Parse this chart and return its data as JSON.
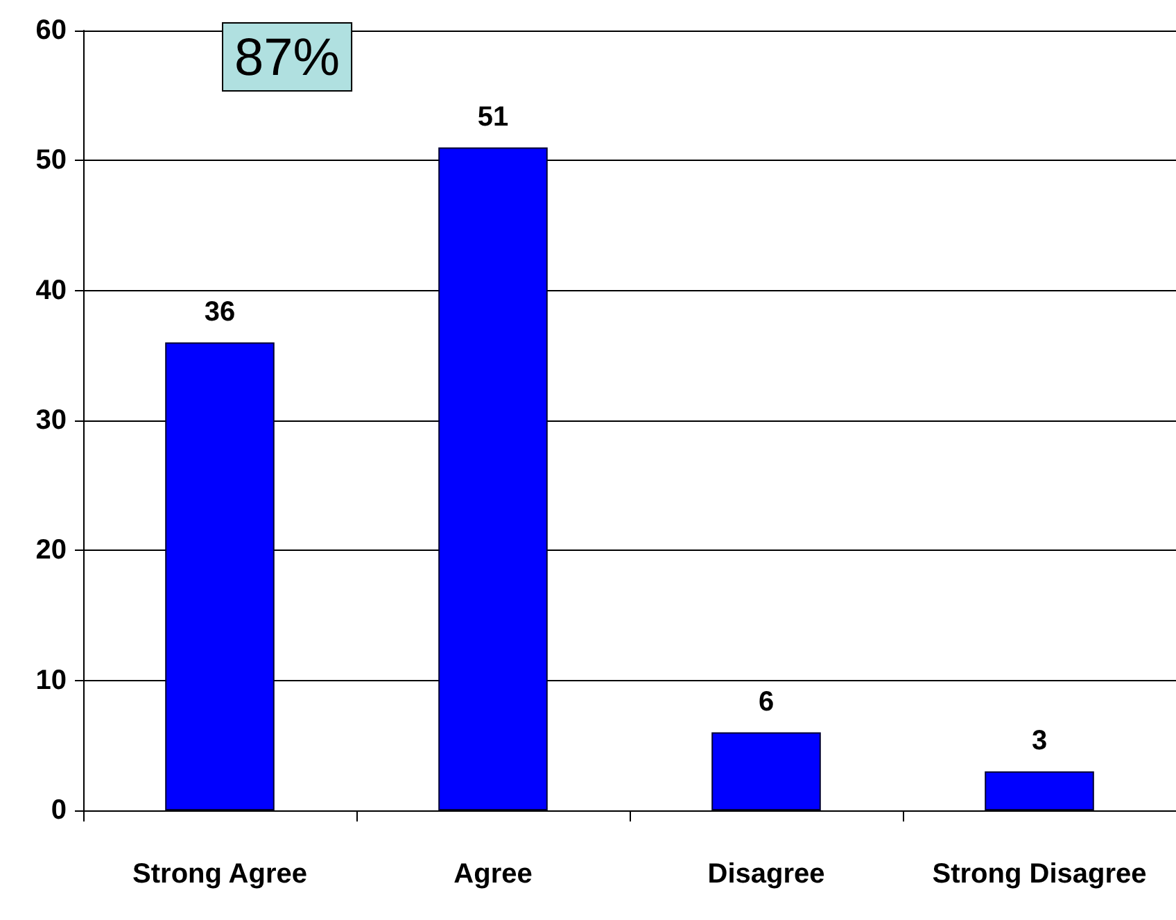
{
  "chart_data": {
    "type": "bar",
    "categories": [
      "Strong Agree",
      "Agree",
      "Disagree",
      "Strong Disagree"
    ],
    "values": [
      36,
      51,
      6,
      3
    ],
    "color": "#0000ff",
    "ylim": [
      0,
      60
    ],
    "yticks": [
      0,
      10,
      20,
      30,
      40,
      50,
      60
    ],
    "grid": "y",
    "data_labels": true,
    "annotations": [
      "87%"
    ]
  }
}
